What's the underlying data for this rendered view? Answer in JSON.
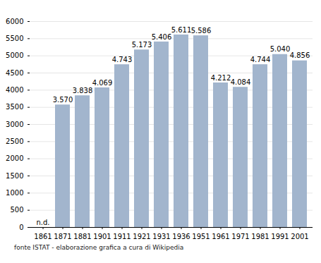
{
  "chart_data": {
    "type": "bar",
    "categories": [
      "1861",
      "1871",
      "1881",
      "1901",
      "1911",
      "1921",
      "1931",
      "1936",
      "1951",
      "1961",
      "1971",
      "1981",
      "1991",
      "2001"
    ],
    "values": [
      null,
      3570,
      3838,
      4069,
      4743,
      5173,
      5406,
      5611,
      5586,
      4212,
      4084,
      4744,
      5040,
      4856
    ],
    "value_labels": [
      "n.d.",
      "3.570",
      "3.838",
      "4.069",
      "4.743",
      "5.173",
      "5.406",
      "5.611",
      "5.586",
      "4.212",
      "4.084",
      "4.744",
      "5.040",
      "4.856"
    ],
    "data_labels": true,
    "color": "#a2b5cd",
    "ylim": [
      0,
      6000
    ],
    "yticks": [
      0,
      500,
      1000,
      1500,
      2000,
      2500,
      3000,
      3500,
      4000,
      4500,
      5000,
      5500,
      6000
    ],
    "grid": true,
    "caption": "fonte ISTAT - elaborazione grafica a cura di Wikipedia"
  }
}
